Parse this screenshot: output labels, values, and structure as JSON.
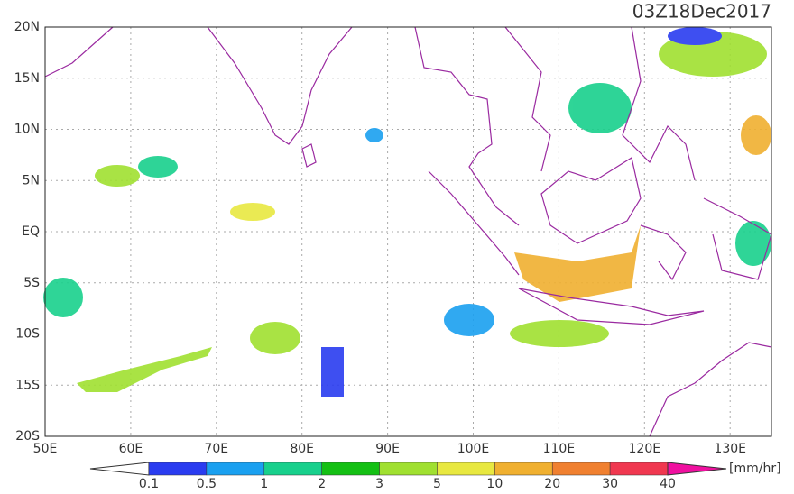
{
  "title": "03Z18Dec2017",
  "lat_labels": [
    "20N",
    "15N",
    "10N",
    "5N",
    "EQ",
    "5S",
    "10S",
    "15S",
    "20S"
  ],
  "lon_labels": [
    "50E",
    "60E",
    "70E",
    "80E",
    "90E",
    "100E",
    "110E",
    "120E",
    "130E"
  ],
  "colorbar": {
    "labels": [
      0.1,
      0.5,
      1,
      2,
      3,
      5,
      10,
      20,
      30,
      40
    ],
    "colors": [
      "#ffffff",
      "#2a3cf0",
      "#1aa0f0",
      "#18d08c",
      "#14c014",
      "#a0e030",
      "#e8e840",
      "#f0b030",
      "#f08030",
      "#f03850",
      "#f010a0"
    ],
    "unit": "[mm/hr]"
  }
}
